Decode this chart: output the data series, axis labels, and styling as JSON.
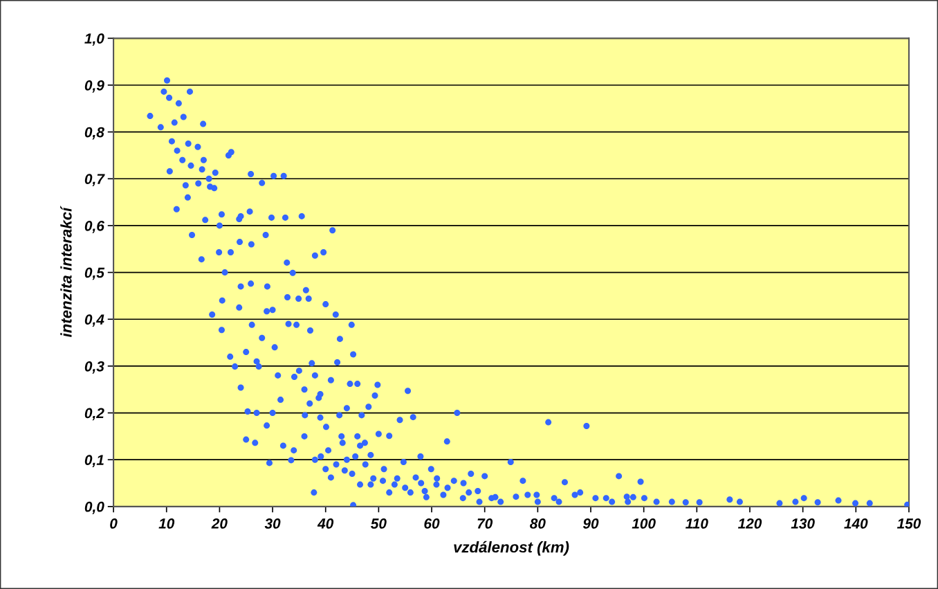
{
  "chart_data": {
    "type": "scatter",
    "xlabel": "vzdálenost (km)",
    "ylabel": "intenzita interakcí",
    "marker": "circle",
    "grid": "y",
    "xlim": [
      0,
      150
    ],
    "ylim": [
      0,
      1
    ],
    "xticks": [
      0,
      10,
      20,
      30,
      40,
      50,
      60,
      70,
      80,
      90,
      100,
      110,
      120,
      130,
      140,
      150
    ],
    "yticks": [
      {
        "value": 0,
        "label": "0,0"
      },
      {
        "value": 0.1,
        "label": "0,1"
      },
      {
        "value": 0.2,
        "label": "0,2"
      },
      {
        "value": 0.3,
        "label": "0,3"
      },
      {
        "value": 0.4,
        "label": "0,4"
      },
      {
        "value": 0.5,
        "label": "0,5"
      },
      {
        "value": 0.6,
        "label": "0,6"
      },
      {
        "value": 0.7,
        "label": "0,7"
      },
      {
        "value": 0.8,
        "label": "0,8"
      },
      {
        "value": 0.9,
        "label": "0,9"
      },
      {
        "value": 1,
        "label": "1,0"
      }
    ],
    "series": [
      {
        "color": "#3366ff",
        "x": [
          6.9,
          8.9,
          10.1,
          9.5,
          10.5,
          10.6,
          11,
          11.5,
          11.9,
          12.3,
          13.2,
          13.6,
          14.4,
          14.1,
          14.6,
          14.8,
          15.9,
          16.6,
          16.9,
          16.7,
          17.3,
          18.2,
          18.6,
          19.2,
          19.9,
          20.4,
          20.5,
          20.4,
          21.7,
          22.2,
          22.1,
          22.9,
          23.7,
          23.8,
          23.7,
          24,
          25,
          25.3,
          25.9,
          25.7,
          25.9,
          26.1,
          26.7,
          27.4,
          28,
          28.7,
          28.9,
          28.9,
          29.4,
          29.8,
          30.2,
          30.4,
          31.5,
          32.1,
          32.4,
          32.7,
          32.8,
          33.5,
          33.8,
          34.1,
          34.5,
          34.9,
          35.5,
          36.1,
          36.3,
          36.8,
          37.1,
          37.4,
          37.8,
          38,
          38.7,
          39.1,
          39.6,
          40,
          40.1,
          41.3,
          41,
          41.9,
          42.2,
          42.6,
          42.7,
          43.2,
          43.6,
          44.6,
          44.9,
          45.2,
          45.2,
          45.6,
          46,
          46.5,
          46.8,
          47.4,
          48.1,
          48.5,
          49.3,
          49.8,
          50,
          50.8,
          52,
          53,
          54,
          54.7,
          55.5,
          56.5,
          57,
          57.9,
          58.7,
          59.9,
          60.9,
          62.2,
          62.9,
          64.2,
          64.8,
          65.9,
          67.4,
          68.7,
          70,
          71.3,
          74.9,
          75.9,
          77.2,
          78.1,
          79.8,
          82,
          83.1,
          85.1,
          87,
          89.2,
          90.9,
          92.9,
          95.3,
          96.8,
          99.4,
          100.1,
          102.4,
          105.3,
          107.9,
          110.5,
          116.2,
          118.1,
          125.6,
          128.6,
          130.2,
          132.8,
          136.7,
          139.9,
          142.6,
          149.7,
          40.5,
          42,
          43,
          44,
          45,
          46.5,
          47.5,
          48.5,
          49,
          51,
          52,
          53.5,
          55,
          56,
          58,
          59,
          61,
          63,
          66,
          67,
          69,
          72,
          73,
          80,
          84,
          88,
          94,
          97,
          98,
          30,
          31,
          33,
          35,
          36,
          37,
          38,
          39,
          36,
          38,
          40,
          41,
          34,
          39,
          27,
          28,
          29,
          26,
          24,
          25,
          22,
          21,
          19,
          20,
          18,
          17,
          16,
          13,
          12,
          14,
          24,
          27,
          30,
          32,
          44,
          46
        ],
        "values": [
          0.834,
          0.81,
          0.91,
          0.886,
          0.873,
          0.716,
          0.78,
          0.82,
          0.635,
          0.861,
          0.832,
          0.686,
          0.886,
          0.775,
          0.728,
          0.58,
          0.768,
          0.528,
          0.817,
          0.72,
          0.612,
          0.683,
          0.41,
          0.713,
          0.543,
          0.624,
          0.44,
          0.377,
          0.75,
          0.757,
          0.543,
          0.299,
          0.614,
          0.565,
          0.425,
          0.254,
          0.143,
          0.203,
          0.71,
          0.63,
          0.476,
          0.388,
          0.136,
          0.299,
          0.691,
          0.58,
          0.417,
          0.173,
          0.093,
          0.617,
          0.706,
          0.34,
          0.228,
          0.706,
          0.617,
          0.521,
          0.447,
          0.099,
          0.499,
          0.277,
          0.388,
          0.444,
          0.62,
          0.195,
          0.462,
          0.444,
          0.376,
          0.306,
          0.03,
          0.536,
          0.232,
          0.107,
          0.543,
          0.432,
          0.17,
          0.59,
          0.062,
          0.41,
          0.308,
          0.195,
          0.358,
          0.136,
          0.077,
          0.262,
          0.388,
          0.325,
          0.003,
          0.107,
          0.262,
          0.047,
          0.195,
          0.136,
          0.213,
          0.047,
          0.237,
          0.26,
          0.155,
          0.055,
          0.151,
          0.047,
          0.185,
          0.095,
          0.247,
          0.191,
          0.062,
          0.107,
          0.033,
          0.08,
          0.047,
          0.025,
          0.139,
          0.055,
          0.2,
          0.018,
          0.07,
          0.033,
          0.065,
          0.018,
          0.095,
          0.021,
          0.055,
          0.025,
          0.025,
          0.18,
          0.018,
          0.052,
          0.025,
          0.172,
          0.018,
          0.018,
          0.065,
          0.021,
          0.053,
          0.018,
          0.01,
          0.01,
          0.009,
          0.009,
          0.015,
          0.01,
          0.007,
          0.01,
          0.018,
          0.009,
          0.013,
          0.007,
          0.007,
          0.004,
          0.12,
          0.09,
          0.15,
          0.1,
          0.07,
          0.13,
          0.09,
          0.11,
          0.06,
          0.08,
          0.03,
          0.06,
          0.04,
          0.03,
          0.05,
          0.02,
          0.06,
          0.04,
          0.05,
          0.03,
          0.01,
          0.02,
          0.01,
          0.01,
          0.01,
          0.03,
          0.01,
          0.01,
          0.02,
          0.42,
          0.28,
          0.39,
          0.29,
          0.25,
          0.22,
          0.28,
          0.24,
          0.15,
          0.1,
          0.08,
          0.27,
          0.12,
          0.19,
          0.31,
          0.36,
          0.47,
          0.56,
          0.47,
          0.33,
          0.32,
          0.5,
          0.68,
          0.6,
          0.7,
          0.74,
          0.69,
          0.74,
          0.76,
          0.66,
          0.62,
          0.2,
          0.2,
          0.13,
          0.21,
          0.15
        ]
      }
    ]
  }
}
